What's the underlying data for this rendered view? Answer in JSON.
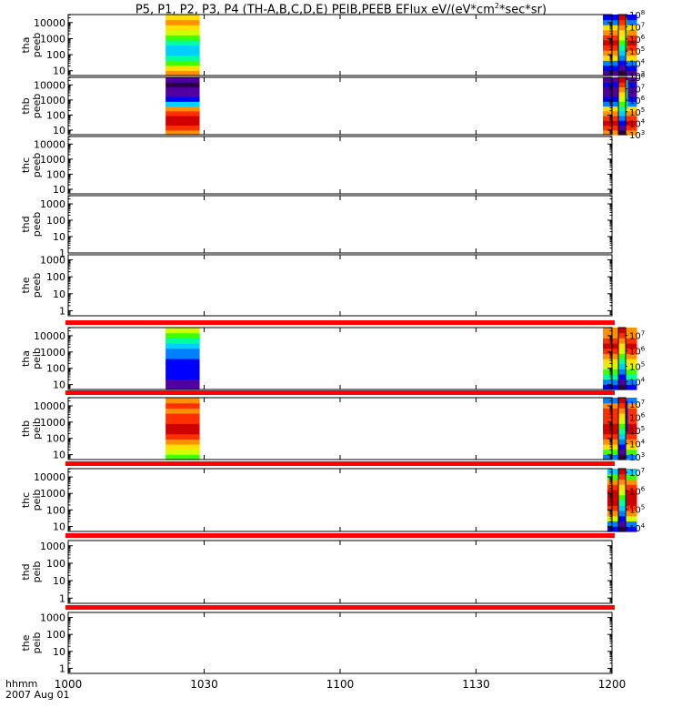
{
  "title": {
    "main": "P5, P1, P2, P3, P4 (TH-A,B,C,D,E) PEIB,PEEB EFlux eV/(eV*cm",
    "sup": "2",
    "tail": "*sec*sr)"
  },
  "time_axis": {
    "label_line1": "hhmm",
    "label_line2": "2007 Aug 01",
    "ticks": [
      "1000",
      "1030",
      "1100",
      "1130",
      "1200"
    ],
    "tick_minutes": [
      0,
      30,
      60,
      90,
      120
    ],
    "range_minutes": [
      0,
      120
    ]
  },
  "colors": {
    "rainbow": [
      "#2a0040",
      "#5000a0",
      "#0000ff",
      "#0080ff",
      "#00d0ff",
      "#00ffa0",
      "#40ff00",
      "#d0ff00",
      "#ffe000",
      "#ff9000",
      "#ff3000",
      "#d00000"
    ],
    "nodata_bar": "#ff0000",
    "axis": "#000000"
  },
  "chart_data": {
    "type": "heatmap",
    "x_unit": "minutes after 10:00 UT",
    "panels": [
      {
        "probe": "tha",
        "product": "peeb",
        "yticks": [
          "10000",
          "1000",
          "100",
          "10"
        ],
        "ylog": [
          0.7,
          4.5
        ],
        "nodata_bar": false,
        "colorbar": {
          "min_exp": 3,
          "max_exp": 8,
          "tick_base": "10",
          "tick_exps": [
            "8",
            "7",
            "6",
            "5",
            "4",
            "3"
          ]
        },
        "blocks": [
          {
            "t": [
              21.5,
              29
            ],
            "levels": [
              9,
              8,
              6,
              5,
              4,
              4,
              5,
              6,
              7,
              8,
              9,
              8
            ],
            "hole": null
          },
          {
            "t": [
              118,
              125.5
            ],
            "levels": [
              1,
              2,
              3,
              8,
              9,
              10,
              11,
              10,
              9,
              8,
              3,
              2
            ],
            "hole": {
              "t": [
                122,
                123.3
              ],
              "level": 6
            }
          }
        ]
      },
      {
        "probe": "thb",
        "product": "peeb",
        "yticks": [
          "10000",
          "1000",
          "100",
          "10"
        ],
        "ylog": [
          0.7,
          4.5
        ],
        "nodata_bar": false,
        "colorbar": {
          "min_exp": 3,
          "max_exp": 8,
          "tick_base": "10",
          "tick_exps": [
            "8",
            "7",
            "6",
            "5",
            "4",
            "3"
          ]
        },
        "blocks": [
          {
            "t": [
              21.5,
              29
            ],
            "levels": [
              9,
              10,
              11,
              11,
              10,
              9,
              4,
              2,
              1,
              1,
              0,
              1
            ],
            "hole": null
          },
          {
            "t": [
              118,
              125.5
            ],
            "levels": [
              9,
              10,
              11,
              10,
              9,
              8,
              3,
              2,
              1,
              1,
              2,
              1
            ],
            "hole": {
              "t": [
                122,
                123.5
              ],
              "level": 5
            }
          }
        ]
      },
      {
        "probe": "thc",
        "product": "peeb",
        "yticks": [
          "10000",
          "1000",
          "100",
          "10"
        ],
        "ylog": [
          0.7,
          4.5
        ],
        "nodata_bar": false,
        "colorbar": null,
        "blocks": []
      },
      {
        "probe": "thd",
        "product": "peeb",
        "yticks": [
          "1000",
          "100",
          "10",
          "1"
        ],
        "ylog": [
          0,
          3.5
        ],
        "nodata_bar": false,
        "colorbar": null,
        "blocks": []
      },
      {
        "probe": "the",
        "product": "peeb",
        "yticks": [
          "1000",
          "100",
          "10",
          "1"
        ],
        "ylog": [
          -0.3,
          3.3
        ],
        "nodata_bar": false,
        "colorbar": null,
        "blocks": []
      },
      {
        "probe": "tha",
        "product": "peib",
        "yticks": [
          "10000",
          "1000",
          "100",
          "10"
        ],
        "ylog": [
          0.7,
          4.5
        ],
        "nodata_bar": true,
        "colorbar": {
          "min_exp": 3.5,
          "max_exp": 7.5,
          "tick_base": "10",
          "tick_exps": [
            "7",
            "6",
            "5",
            "4"
          ]
        },
        "blocks": [
          {
            "t": [
              21.5,
              29
            ],
            "levels": [
              1,
              1,
              2,
              2,
              2,
              2,
              3,
              3,
              4,
              5,
              6,
              7
            ],
            "hole": null
          },
          {
            "t": [
              118,
              125.5
            ],
            "levels": [
              2,
              3,
              5,
              6,
              7,
              8,
              9,
              10,
              11,
              10,
              9,
              9
            ],
            "hole": {
              "t": [
                122,
                123
              ],
              "level": 4
            }
          }
        ]
      },
      {
        "probe": "thb",
        "product": "peib",
        "yticks": [
          "10000",
          "1000",
          "100",
          "10"
        ],
        "ylog": [
          0.7,
          4.5
        ],
        "nodata_bar": true,
        "colorbar": {
          "min_exp": 2.8,
          "max_exp": 7.5,
          "tick_base": "10",
          "tick_exps": [
            "7",
            "6",
            "5",
            "4",
            "3"
          ]
        },
        "blocks": [
          {
            "t": [
              21.5,
              29
            ],
            "levels": [
              6,
              7,
              8,
              9,
              10,
              11,
              11,
              10,
              10,
              9,
              10,
              9
            ],
            "hole": null
          },
          {
            "t": [
              118,
              125.5
            ],
            "levels": [
              3,
              6,
              8,
              9,
              10,
              11,
              11,
              10,
              10,
              10,
              9,
              3
            ],
            "hole": {
              "t": [
                122.5,
                123.5
              ],
              "level": 2
            }
          }
        ]
      },
      {
        "probe": "thc",
        "product": "peib",
        "yticks": [
          "10000",
          "1000",
          "100",
          "10"
        ],
        "ylog": [
          0.7,
          4.5
        ],
        "nodata_bar": true,
        "colorbar": {
          "min_exp": 3.8,
          "max_exp": 7.2,
          "tick_base": "10",
          "tick_exps": [
            "7",
            "6",
            "5",
            "4"
          ]
        },
        "blocks": [
          {
            "t": [
              119,
              125.5
            ],
            "levels": [
              2,
              3,
              7,
              9,
              10,
              11,
              11,
              11,
              10,
              9,
              6,
              4
            ],
            "hole": null
          }
        ]
      },
      {
        "probe": "thd",
        "product": "peib",
        "yticks": [
          "1000",
          "100",
          "10",
          "1"
        ],
        "ylog": [
          -0.3,
          3.3
        ],
        "nodata_bar": true,
        "colorbar": null,
        "blocks": []
      },
      {
        "probe": "the",
        "product": "peib",
        "yticks": [
          "1000",
          "100",
          "10",
          "1"
        ],
        "ylog": [
          -0.3,
          3.3
        ],
        "nodata_bar": true,
        "colorbar": null,
        "blocks": []
      }
    ]
  }
}
